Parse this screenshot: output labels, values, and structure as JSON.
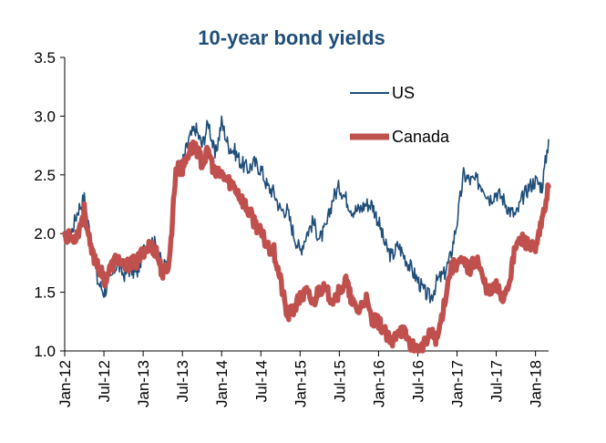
{
  "chart_data": {
    "type": "line",
    "title": "10-year  bond yields",
    "xlabel": "",
    "ylabel": "",
    "ylim": [
      1.0,
      3.5
    ],
    "y_ticks": [
      "1.0",
      "1.5",
      "2.0",
      "2.5",
      "3.0",
      "3.5"
    ],
    "x_tick_labels": [
      "Jan-12",
      "Jul-12",
      "Jan-13",
      "Jul-13",
      "Jan-14",
      "Jul-14",
      "Jan-15",
      "Jul-15",
      "Jan-16",
      "Jul-16",
      "Jan-17",
      "Jul-17",
      "Jan-18"
    ],
    "x_range_months": [
      0,
      74
    ],
    "legend_position": "top-right",
    "colors": {
      "title": "#1f4e79",
      "us": "#1f4e79",
      "canada": "#c0504d"
    },
    "series": [
      {
        "name": "US",
        "x_months": [
          0,
          1,
          2,
          3,
          4,
          5,
          6,
          7,
          8,
          9,
          10,
          11,
          12,
          13,
          14,
          15,
          16,
          17,
          18,
          19,
          20,
          21,
          22,
          23,
          24,
          25,
          26,
          27,
          28,
          29,
          30,
          31,
          32,
          33,
          34,
          35,
          36,
          37,
          38,
          39,
          40,
          41,
          42,
          43,
          44,
          45,
          46,
          47,
          48,
          49,
          50,
          51,
          52,
          53,
          54,
          55,
          56,
          57,
          58,
          59,
          60,
          61,
          62,
          63,
          64,
          65,
          66,
          67,
          68,
          69,
          70,
          71,
          72,
          73,
          74
        ],
        "values": [
          1.95,
          2.0,
          2.2,
          2.3,
          1.95,
          1.6,
          1.5,
          1.6,
          1.75,
          1.65,
          1.7,
          1.65,
          1.85,
          1.95,
          1.9,
          1.7,
          1.8,
          2.5,
          2.6,
          2.8,
          2.9,
          2.75,
          2.95,
          2.65,
          2.95,
          2.75,
          2.7,
          2.6,
          2.55,
          2.6,
          2.55,
          2.4,
          2.35,
          2.2,
          2.2,
          2.0,
          1.85,
          2.0,
          2.1,
          1.95,
          2.05,
          2.3,
          2.4,
          2.3,
          2.2,
          2.2,
          2.25,
          2.25,
          2.1,
          1.9,
          1.8,
          1.9,
          1.8,
          1.7,
          1.6,
          1.5,
          1.45,
          1.6,
          1.65,
          1.8,
          2.1,
          2.5,
          2.45,
          2.45,
          2.4,
          2.3,
          2.35,
          2.3,
          2.2,
          2.15,
          2.3,
          2.4,
          2.45,
          2.4,
          2.8
        ]
      },
      {
        "name": "Canada",
        "x_months": [
          0,
          1,
          2,
          3,
          4,
          5,
          6,
          7,
          8,
          9,
          10,
          11,
          12,
          13,
          14,
          15,
          16,
          17,
          18,
          19,
          20,
          21,
          22,
          23,
          24,
          25,
          26,
          27,
          28,
          29,
          30,
          31,
          32,
          33,
          34,
          35,
          36,
          37,
          38,
          39,
          40,
          41,
          42,
          43,
          44,
          45,
          46,
          47,
          48,
          49,
          50,
          51,
          52,
          53,
          54,
          55,
          56,
          57,
          58,
          59,
          60,
          61,
          62,
          63,
          64,
          65,
          66,
          67,
          68,
          69,
          70,
          71,
          72,
          73,
          74
        ],
        "values": [
          2.0,
          1.95,
          2.0,
          2.2,
          1.85,
          1.75,
          1.6,
          1.7,
          1.8,
          1.7,
          1.75,
          1.75,
          1.85,
          1.9,
          1.85,
          1.65,
          1.75,
          2.55,
          2.55,
          2.7,
          2.75,
          2.6,
          2.7,
          2.5,
          2.5,
          2.45,
          2.4,
          2.3,
          2.2,
          2.1,
          2.0,
          1.9,
          1.85,
          1.6,
          1.3,
          1.35,
          1.45,
          1.5,
          1.4,
          1.55,
          1.5,
          1.45,
          1.5,
          1.6,
          1.4,
          1.35,
          1.45,
          1.25,
          1.25,
          1.15,
          1.05,
          1.2,
          1.15,
          1.05,
          1.0,
          1.05,
          1.15,
          1.1,
          1.4,
          1.7,
          1.75,
          1.75,
          1.7,
          1.8,
          1.6,
          1.5,
          1.55,
          1.45,
          1.6,
          1.9,
          1.95,
          1.9,
          1.85,
          2.1,
          2.4
        ]
      }
    ]
  }
}
